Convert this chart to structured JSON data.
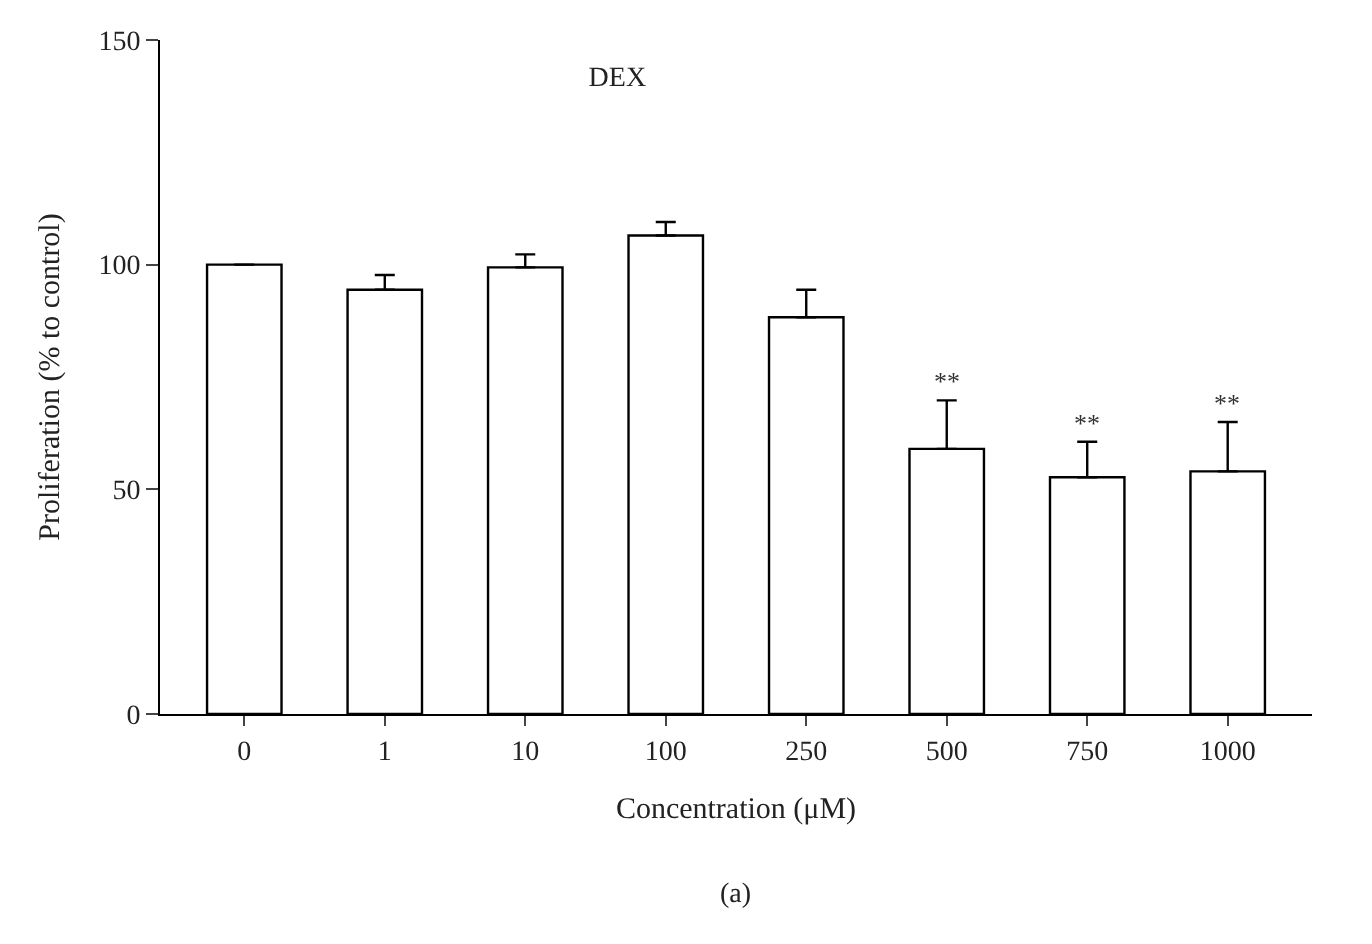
{
  "chart_data": {
    "type": "bar",
    "title": "DEX",
    "xlabel": "Concentration (μM)",
    "ylabel": "Proliferation (% to control)",
    "categories": [
      "0",
      "1",
      "10",
      "100",
      "250",
      "500",
      "750",
      "1000"
    ],
    "values": [
      100,
      94.4,
      99.4,
      106.5,
      88.3,
      59.0,
      52.7,
      54.0
    ],
    "errors": [
      null,
      [
        94.4,
        97.7
      ],
      [
        99.4,
        102.3
      ],
      [
        106.5,
        109.5
      ],
      [
        88.3,
        94.4
      ],
      [
        59.0,
        69.8
      ],
      [
        52.7,
        60.6
      ],
      [
        54.0,
        65.0
      ]
    ],
    "color": "#ffffff",
    "ylim": [
      0,
      150
    ],
    "yticks": [
      0,
      50,
      100,
      150
    ],
    "annotations": [
      {
        "text": "**",
        "x": "500",
        "y": 69.8
      },
      {
        "text": "**",
        "x": "750",
        "y": 60.6
      },
      {
        "text": "**",
        "x": "1000",
        "y": 65.0
      },
      "(a)"
    ]
  }
}
